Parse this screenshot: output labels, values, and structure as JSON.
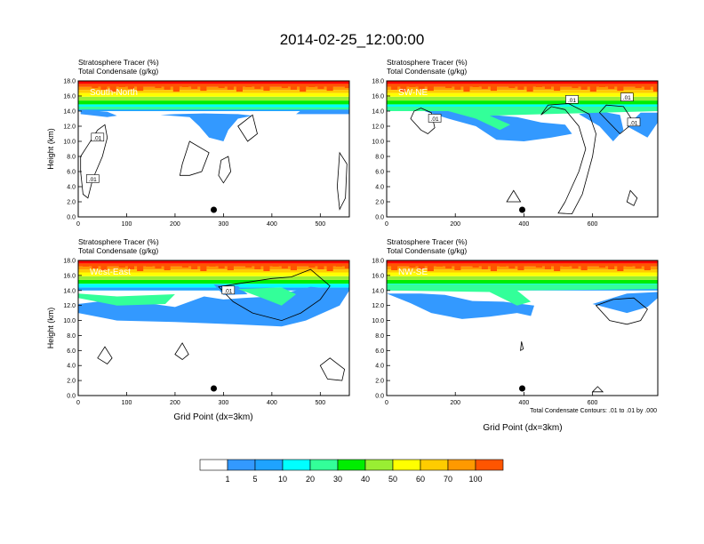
{
  "page_title": "2014-02-25_12:00:00",
  "xlabel": "Grid Point (dx=3km)",
  "ylabel": "Height (km)",
  "contour_note": "Total Condensate Contours: .01 to .01 by .000",
  "colorbar": {
    "levels": [
      "1",
      "5",
      "10",
      "20",
      "30",
      "40",
      "50",
      "60",
      "70",
      "100"
    ],
    "colors": [
      "#ffffff",
      "#3399ff",
      "#1fa3ff",
      "#00ffff",
      "#33ff99",
      "#00ee00",
      "#99ee33",
      "#ffff00",
      "#ffcc00",
      "#ff9900",
      "#ff5500",
      "#ff0000"
    ]
  },
  "chart_data": [
    {
      "type": "contour",
      "panel_label": "South-North",
      "title_line1": "Stratosphere Tracer   (%)",
      "title_line2": "Total Condensate   (g/kg)",
      "x_ticks": [
        "0",
        "100",
        "200",
        "300",
        "400",
        "500"
      ],
      "y_ticks": [
        "0.0",
        "2.0",
        "4.0",
        "6.0",
        "8.0",
        "10.0",
        "12.0",
        "14.0",
        "16.0",
        "18.0"
      ],
      "xlim": [
        0,
        560
      ],
      "ylim": [
        0,
        18
      ],
      "contour_labels": [
        ".01",
        ".01"
      ],
      "marker_x": 280
    },
    {
      "type": "contour",
      "panel_label": "SW-NE",
      "title_line1": "Stratosphere Tracer   (%)",
      "title_line2": "Total Condensate   (g/kg)",
      "x_ticks": [
        "0",
        "200",
        "400",
        "600"
      ],
      "y_ticks": [
        "0.0",
        "2.0",
        "4.0",
        "6.0",
        "8.0",
        "10.0",
        "12.0",
        "14.0",
        "16.0",
        "18.0"
      ],
      "xlim": [
        0,
        790
      ],
      "ylim": [
        0,
        18
      ],
      "contour_labels": [
        ".01",
        ".01",
        ".01",
        ".01"
      ],
      "marker_x": 395
    },
    {
      "type": "contour",
      "panel_label": "West-East",
      "title_line1": "Stratosphere Tracer   (%)",
      "title_line2": "Total Condensate   (g/kg)",
      "x_ticks": [
        "0",
        "100",
        "200",
        "300",
        "400",
        "500"
      ],
      "y_ticks": [
        "0.0",
        "2.0",
        "4.0",
        "6.0",
        "8.0",
        "10.0",
        "12.0",
        "14.0",
        "16.0",
        "18.0"
      ],
      "xlim": [
        0,
        560
      ],
      "ylim": [
        0,
        18
      ],
      "contour_labels": [
        ".01"
      ],
      "marker_x": 280
    },
    {
      "type": "contour",
      "panel_label": "NW-SE",
      "title_line1": "Stratosphere Tracer   (%)",
      "title_line2": "Total Condensate   (g/kg)",
      "x_ticks": [
        "0",
        "200",
        "400",
        "600"
      ],
      "y_ticks": [
        "0.0",
        "2.0",
        "4.0",
        "6.0",
        "8.0",
        "10.0",
        "12.0",
        "14.0",
        "16.0",
        "18.0"
      ],
      "xlim": [
        0,
        790
      ],
      "ylim": [
        0,
        18
      ],
      "contour_labels": [],
      "marker_x": 395
    }
  ]
}
